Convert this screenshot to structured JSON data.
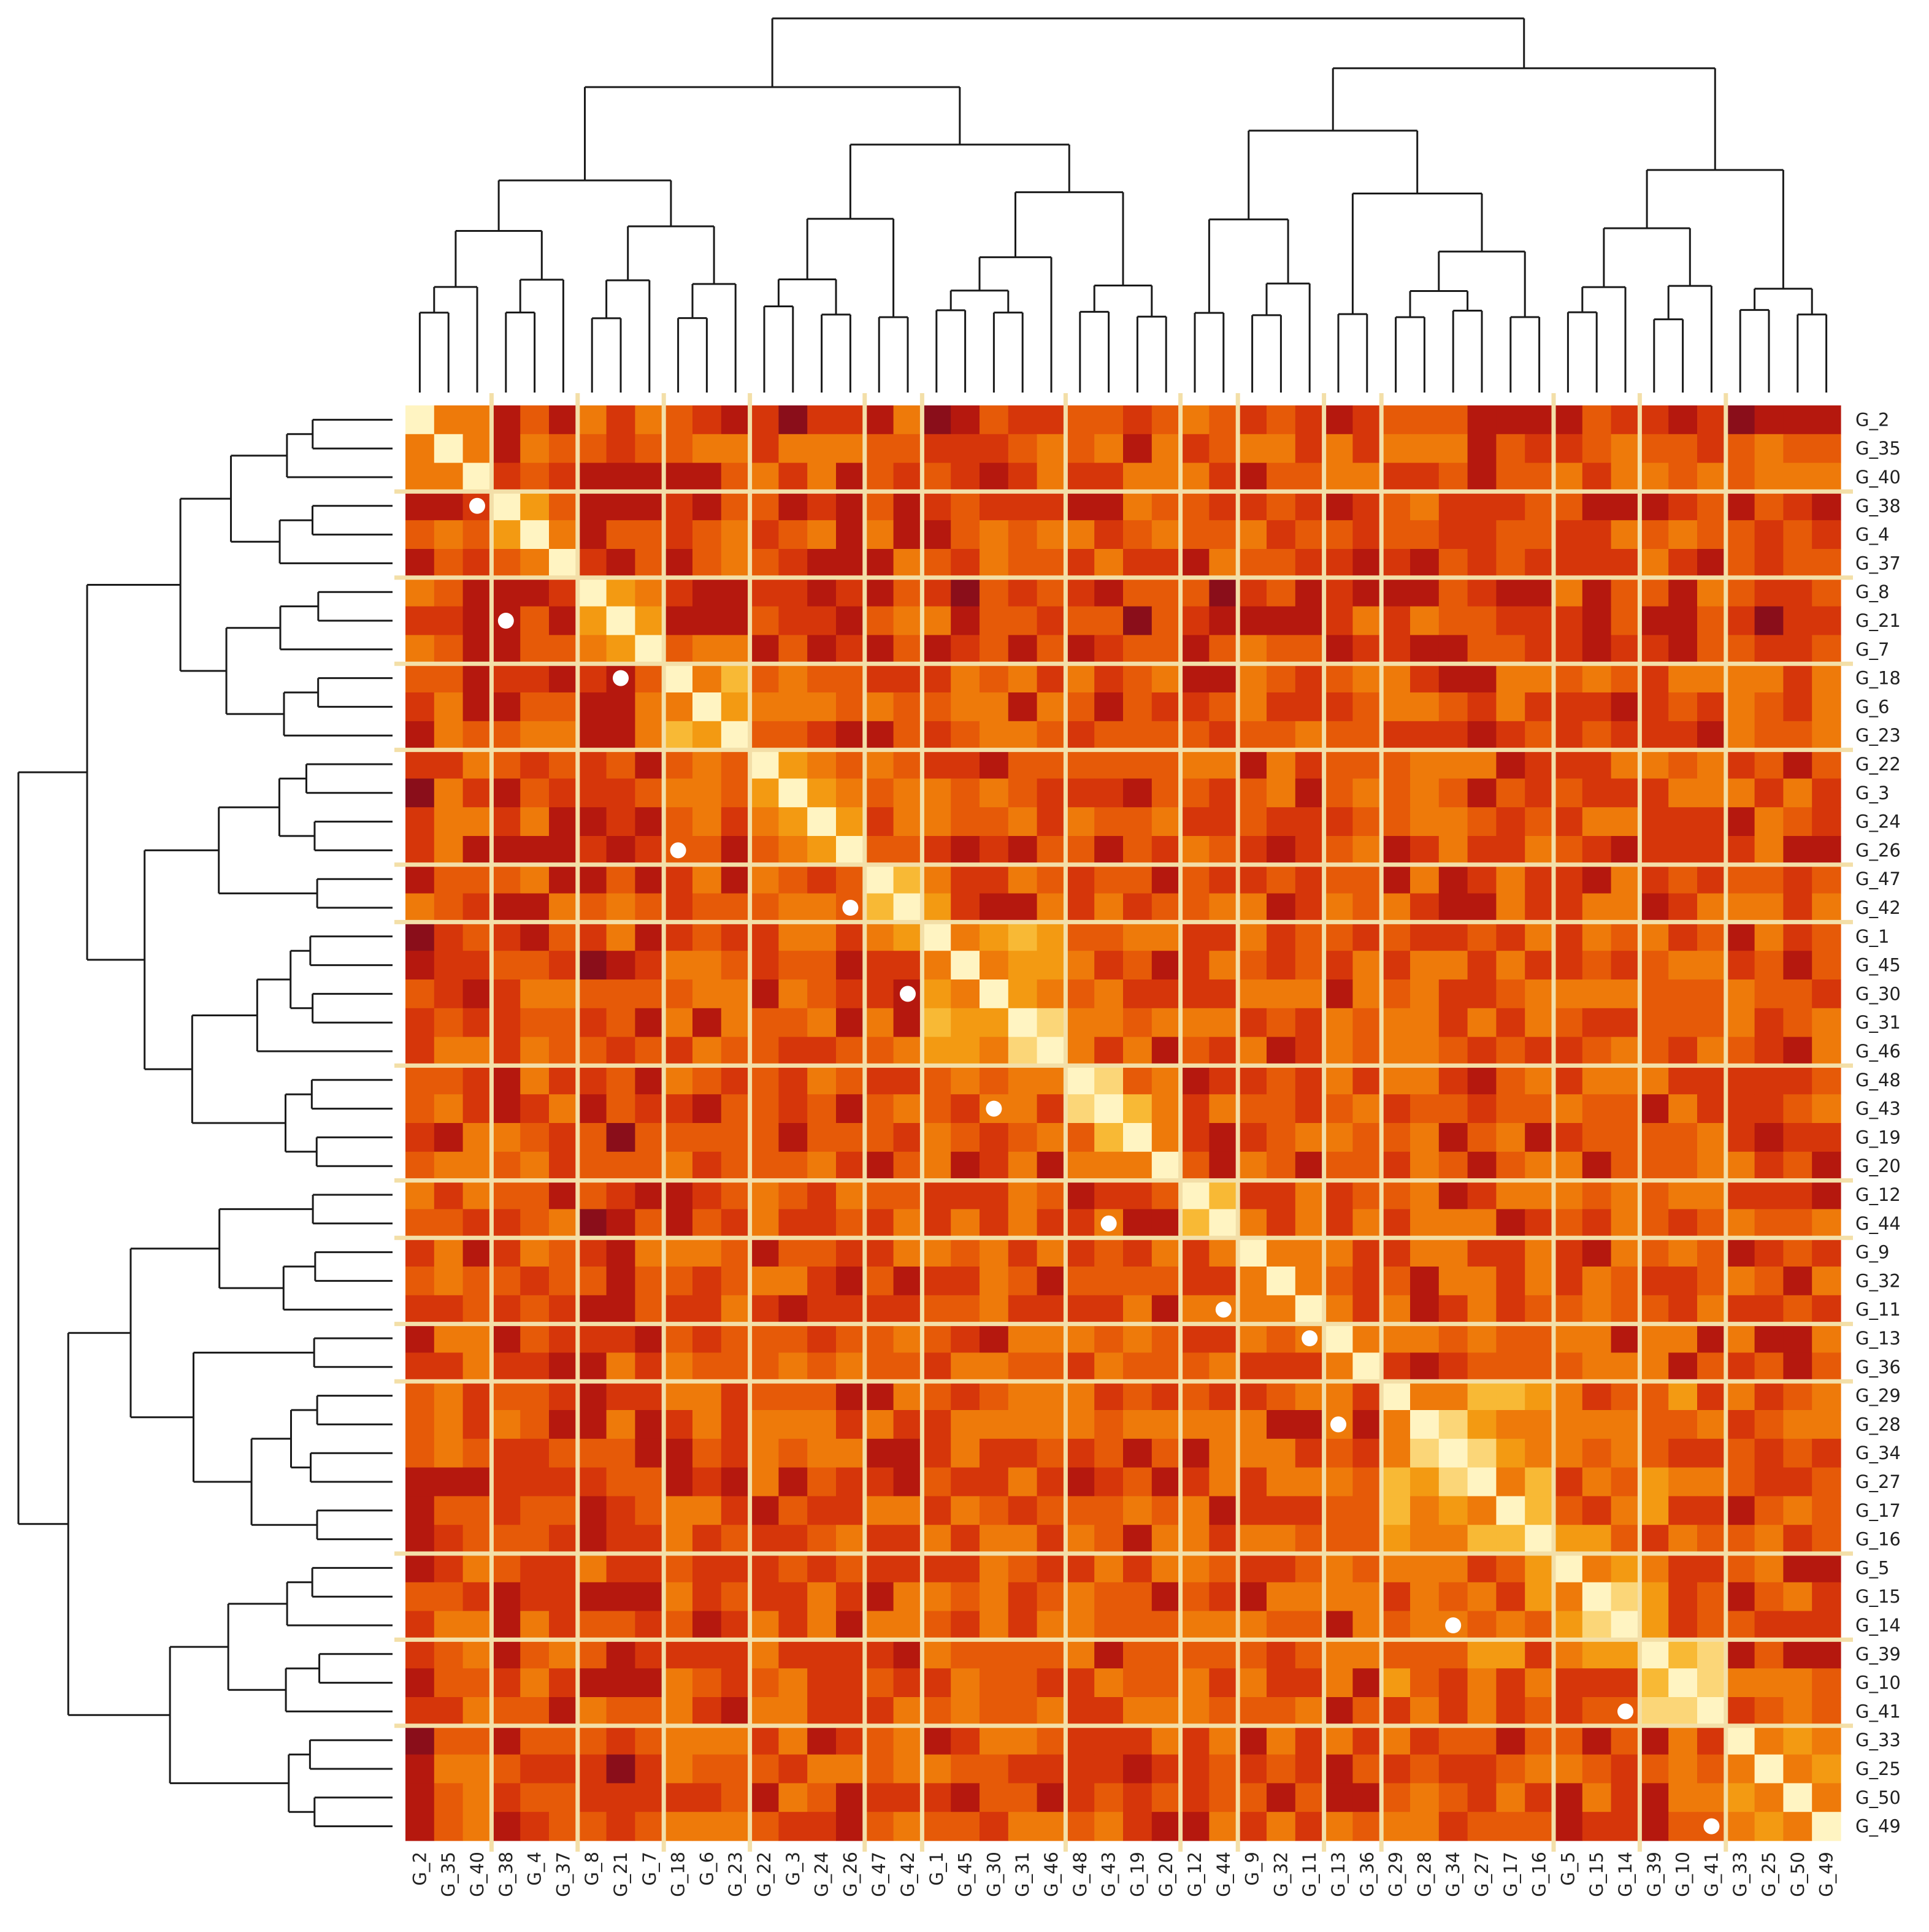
{
  "chart_data": {
    "type": "heatmap",
    "title": "",
    "row_labels": [
      "G_2",
      "G_35",
      "G_40",
      "G_38",
      "G_4",
      "G_37",
      "G_8",
      "G_21",
      "G_7",
      "G_18",
      "G_6",
      "G_23",
      "G_22",
      "G_3",
      "G_24",
      "G_26",
      "G_47",
      "G_42",
      "G_1",
      "G_45",
      "G_30",
      "G_31",
      "G_46",
      "G_48",
      "G_43",
      "G_19",
      "G_20",
      "G_12",
      "G_44",
      "G_9",
      "G_32",
      "G_11",
      "G_13",
      "G_36",
      "G_29",
      "G_28",
      "G_34",
      "G_27",
      "G_17",
      "G_16",
      "G_5",
      "G_15",
      "G_14",
      "G_39",
      "G_10",
      "G_41",
      "G_33",
      "G_25",
      "G_50",
      "G_49"
    ],
    "col_labels": [
      "G_2",
      "G_35",
      "G_40",
      "G_38",
      "G_4",
      "G_37",
      "G_8",
      "G_21",
      "G_7",
      "G_18",
      "G_6",
      "G_23",
      "G_22",
      "G_3",
      "G_24",
      "G_26",
      "G_47",
      "G_42",
      "G_1",
      "G_45",
      "G_30",
      "G_31",
      "G_46",
      "G_48",
      "G_43",
      "G_19",
      "G_20",
      "G_12",
      "G_44",
      "G_9",
      "G_32",
      "G_11",
      "G_13",
      "G_36",
      "G_29",
      "G_28",
      "G_34",
      "G_27",
      "G_17",
      "G_16",
      "G_5",
      "G_15",
      "G_14",
      "G_39",
      "G_10",
      "G_41",
      "G_33",
      "G_25",
      "G_50",
      "G_49"
    ],
    "cluster_sizes": [
      3,
      3,
      3,
      3,
      4,
      2,
      5,
      4,
      2,
      3,
      2,
      6,
      3,
      3,
      4
    ],
    "marked_cells": [
      [
        3,
        2
      ],
      [
        7,
        3
      ],
      [
        9,
        7
      ],
      [
        15,
        9
      ],
      [
        17,
        15
      ],
      [
        20,
        17
      ],
      [
        24,
        20
      ],
      [
        28,
        24
      ],
      [
        31,
        28
      ],
      [
        32,
        31
      ],
      [
        35,
        32
      ],
      [
        42,
        36
      ],
      [
        45,
        42
      ],
      [
        49,
        45
      ]
    ],
    "palette": [
      "#5e0a3c",
      "#8a0e1a",
      "#b5180e",
      "#d6360a",
      "#e65a08",
      "#ee7a0a",
      "#f39a12",
      "#f8b935",
      "#fbd678",
      "#fff4c2"
    ],
    "divider_color": "#f3dfa8",
    "marker_color": "#ffffff",
    "dendrograms": {
      "row": "left",
      "col": "top"
    }
  }
}
